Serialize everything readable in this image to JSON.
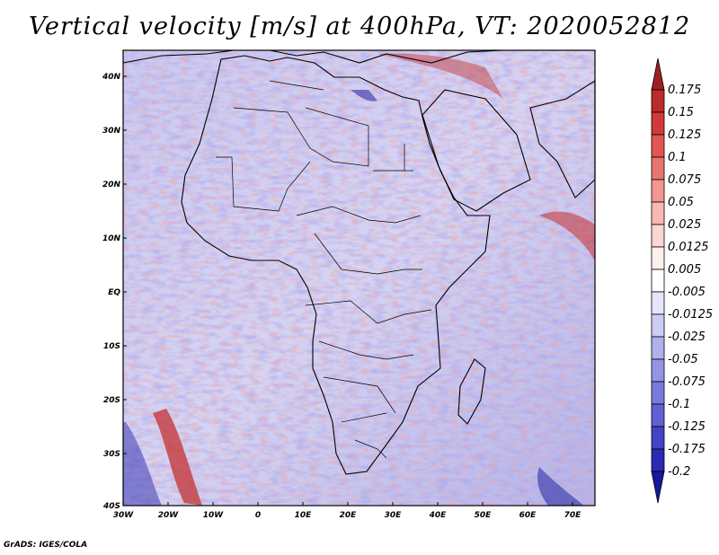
{
  "title": "Vertical velocity [m/s] at 400hPa, VT: 2020052812",
  "credit": "GrADS: IGES/COLA",
  "map": {
    "lon_ticks": [
      "30W",
      "20W",
      "10W",
      "0",
      "10E",
      "20E",
      "30E",
      "40E",
      "50E",
      "60E",
      "70E"
    ],
    "lat_ticks": [
      "40N",
      "30N",
      "20N",
      "10N",
      "EQ",
      "10S",
      "20S",
      "30S",
      "40S"
    ],
    "lon_range": [
      -30,
      75
    ],
    "lat_range": [
      -40,
      45
    ]
  },
  "colorbar": {
    "labels": [
      "0.175",
      "0.15",
      "0.125",
      "0.1",
      "0.075",
      "0.05",
      "0.025",
      "0.0125",
      "0.005",
      "-0.005",
      "-0.0125",
      "-0.025",
      "-0.05",
      "-0.075",
      "-0.1",
      "-0.125",
      "-0.175",
      "-0.2"
    ],
    "colors": [
      "#a01e22",
      "#bd2a2a",
      "#d23a38",
      "#e05650",
      "#ea7470",
      "#f29690",
      "#f8b8b2",
      "#fcd6d2",
      "#fff0ee",
      "#ffffff",
      "#e6e6fa",
      "#ccccf4",
      "#b0b0ee",
      "#9494e6",
      "#7a7ade",
      "#6060d4",
      "#4444c8",
      "#2a2ab6",
      "#18189e"
    ]
  }
}
